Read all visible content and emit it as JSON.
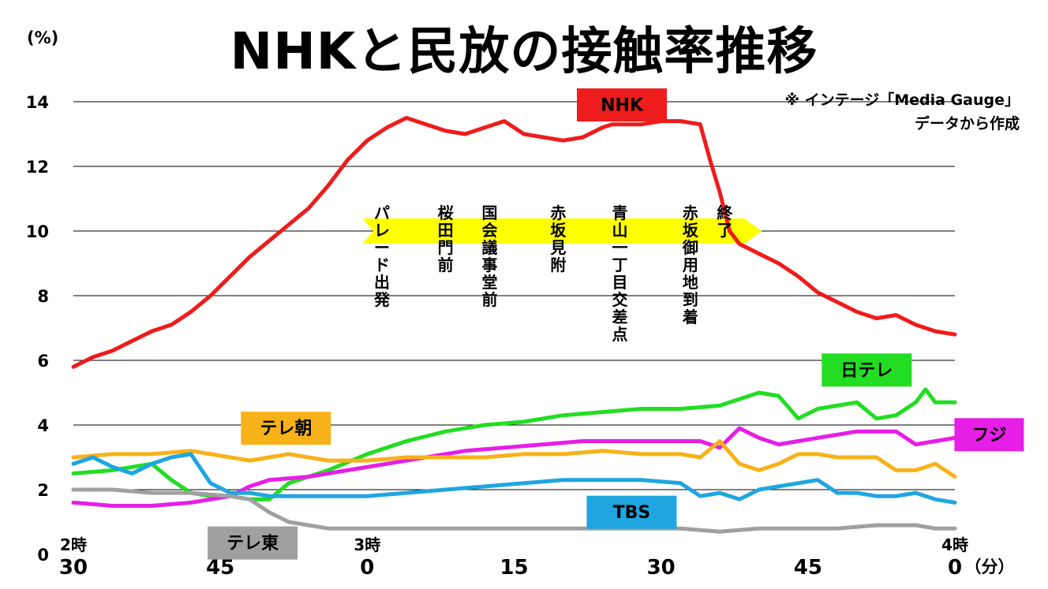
{
  "header": {
    "title": "NHKと民放の接触率推移",
    "unit": "(%)",
    "source_line1": "※ インテージ「Media Gauge」",
    "source_line2": "データから作成"
  },
  "colors": {
    "NHK": "#ee1c1c",
    "日テレ": "#22dd22",
    "フジ": "#e61ee6",
    "テレ朝": "#f7b21a",
    "TBS": "#1fa6e0",
    "テレ東": "#a0a0a0",
    "timeline_band": "#ffff00"
  },
  "chart_data": {
    "type": "line",
    "title": "NHKと民放の接触率推移",
    "ylabel": "(%)",
    "xlabel": "(分)",
    "ylim": [
      0,
      14
    ],
    "yticks": [
      0,
      2,
      4,
      6,
      8,
      10,
      12,
      14
    ],
    "xlim": [
      0,
      90
    ],
    "x_unit": "minutes after 2:30",
    "xticks": [
      {
        "x": 0,
        "label": "30",
        "hour": "2時"
      },
      {
        "x": 15,
        "label": "45",
        "hour": ""
      },
      {
        "x": 30,
        "label": "0",
        "hour": "3時"
      },
      {
        "x": 45,
        "label": "15",
        "hour": ""
      },
      {
        "x": 60,
        "label": "30",
        "hour": ""
      },
      {
        "x": 75,
        "label": "45",
        "hour": ""
      },
      {
        "x": 90,
        "label": "0",
        "hour": "4時"
      }
    ],
    "x_unit_label": "（分）",
    "grid": true,
    "series": [
      {
        "name": "NHK",
        "x": [
          0,
          2,
          4,
          6,
          8,
          10,
          12,
          14,
          16,
          18,
          20,
          22,
          24,
          26,
          28,
          30,
          32,
          34,
          36,
          38,
          40,
          42,
          44,
          46,
          48,
          50,
          52,
          54,
          55,
          56,
          58,
          60,
          62,
          64,
          65,
          66,
          67,
          68,
          70,
          72,
          74,
          76,
          78,
          80,
          82,
          84,
          86,
          88,
          90
        ],
        "values": [
          5.8,
          6.1,
          6.3,
          6.6,
          6.9,
          7.1,
          7.5,
          8.0,
          8.6,
          9.2,
          9.7,
          10.2,
          10.7,
          11.4,
          12.2,
          12.8,
          13.2,
          13.5,
          13.3,
          13.1,
          13.0,
          13.2,
          13.4,
          13.0,
          12.9,
          12.8,
          12.9,
          13.2,
          13.3,
          13.3,
          13.3,
          13.4,
          13.4,
          13.3,
          12.2,
          11.2,
          10.0,
          9.6,
          9.3,
          9.0,
          8.6,
          8.1,
          7.8,
          7.5,
          7.3,
          7.4,
          7.1,
          6.9,
          6.8
        ]
      },
      {
        "name": "日テレ",
        "x": [
          0,
          4,
          8,
          10,
          12,
          14,
          16,
          18,
          20,
          22,
          26,
          30,
          34,
          38,
          42,
          46,
          50,
          54,
          58,
          62,
          66,
          70,
          72,
          74,
          76,
          78,
          80,
          82,
          84,
          86,
          87,
          88,
          90
        ],
        "values": [
          2.5,
          2.6,
          2.8,
          2.3,
          1.9,
          1.8,
          1.8,
          1.7,
          1.7,
          2.2,
          2.6,
          3.1,
          3.5,
          3.8,
          4.0,
          4.1,
          4.3,
          4.4,
          4.5,
          4.5,
          4.6,
          5.0,
          4.9,
          4.2,
          4.5,
          4.6,
          4.7,
          4.2,
          4.3,
          4.7,
          5.1,
          4.7,
          4.7
        ]
      },
      {
        "name": "フジ",
        "x": [
          0,
          4,
          8,
          12,
          16,
          18,
          20,
          24,
          28,
          32,
          36,
          40,
          44,
          48,
          52,
          56,
          60,
          64,
          66,
          68,
          70,
          72,
          76,
          80,
          84,
          86,
          88,
          90
        ],
        "values": [
          1.6,
          1.5,
          1.5,
          1.6,
          1.8,
          2.1,
          2.3,
          2.4,
          2.6,
          2.8,
          3.0,
          3.2,
          3.3,
          3.4,
          3.5,
          3.5,
          3.5,
          3.5,
          3.3,
          3.9,
          3.6,
          3.4,
          3.6,
          3.8,
          3.8,
          3.4,
          3.5,
          3.6
        ]
      },
      {
        "name": "テレ朝",
        "x": [
          0,
          4,
          8,
          12,
          14,
          16,
          18,
          20,
          22,
          24,
          26,
          30,
          34,
          38,
          42,
          46,
          50,
          54,
          58,
          62,
          64,
          66,
          68,
          70,
          72,
          74,
          76,
          78,
          80,
          82,
          84,
          86,
          88,
          90
        ],
        "values": [
          3.0,
          3.1,
          3.1,
          3.2,
          3.1,
          3.0,
          2.9,
          3.0,
          3.1,
          3.0,
          2.9,
          2.9,
          3.0,
          3.0,
          3.0,
          3.1,
          3.1,
          3.2,
          3.1,
          3.1,
          3.0,
          3.5,
          2.8,
          2.6,
          2.8,
          3.1,
          3.1,
          3.0,
          3.0,
          3.0,
          2.6,
          2.6,
          2.8,
          2.4
        ]
      },
      {
        "name": "TBS",
        "x": [
          0,
          2,
          4,
          6,
          8,
          10,
          12,
          14,
          16,
          18,
          20,
          22,
          26,
          30,
          34,
          38,
          42,
          46,
          50,
          54,
          58,
          62,
          64,
          66,
          68,
          70,
          72,
          74,
          76,
          78,
          80,
          82,
          84,
          86,
          88,
          90
        ],
        "values": [
          2.8,
          3.0,
          2.7,
          2.5,
          2.8,
          3.0,
          3.1,
          2.2,
          1.9,
          1.9,
          1.8,
          1.8,
          1.8,
          1.8,
          1.9,
          2.0,
          2.1,
          2.2,
          2.3,
          2.3,
          2.3,
          2.2,
          1.8,
          1.9,
          1.7,
          2.0,
          2.1,
          2.2,
          2.3,
          1.9,
          1.9,
          1.8,
          1.8,
          1.9,
          1.7,
          1.6
        ]
      },
      {
        "name": "テレ東",
        "x": [
          0,
          4,
          8,
          12,
          16,
          18,
          20,
          22,
          24,
          26,
          30,
          34,
          38,
          42,
          46,
          50,
          54,
          58,
          62,
          66,
          70,
          74,
          78,
          82,
          84,
          86,
          88,
          90
        ],
        "values": [
          2.0,
          2.0,
          1.9,
          1.9,
          1.8,
          1.7,
          1.3,
          1.0,
          0.9,
          0.8,
          0.8,
          0.8,
          0.8,
          0.8,
          0.8,
          0.8,
          0.8,
          0.8,
          0.8,
          0.7,
          0.8,
          0.8,
          0.8,
          0.9,
          0.9,
          0.9,
          0.8,
          0.8
        ]
      }
    ],
    "series_labels": [
      {
        "series": "NHK",
        "x": 56,
        "y": 13.9
      },
      {
        "series": "日テレ",
        "x": 81,
        "y": 5.7
      },
      {
        "series": "フジ",
        "x": 93.5,
        "y": 3.7
      },
      {
        "series": "テレ朝",
        "x": 21.7,
        "y": 3.9
      },
      {
        "series": "TBS",
        "x": 57,
        "y": 1.3
      },
      {
        "series": "テレ東",
        "x": 18.3,
        "y": 0.35
      }
    ],
    "events": [
      {
        "label": "パレード出発",
        "x": 31.5
      },
      {
        "label": "桜田門前",
        "x": 38.0
      },
      {
        "label": "国会議事堂前",
        "x": 42.5
      },
      {
        "label": "赤坂見附",
        "x": 49.5
      },
      {
        "label": "青山一丁目交差点",
        "x": 55.8
      },
      {
        "label": "赤坂御用地到着",
        "x": 63.0
      },
      {
        "label": "終了",
        "x": 66.5
      }
    ]
  }
}
